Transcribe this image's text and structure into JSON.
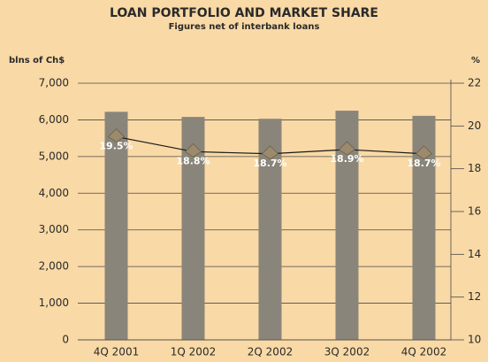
{
  "chart_data": {
    "type": "combo",
    "title": "LOAN PORTFOLIO AND MARKET SHARE",
    "subtitle": "Figures net of interbank loans",
    "y_label": "blns of Ch$",
    "y2_label": "%",
    "categories": [
      "4Q 2001",
      "1Q 2002",
      "2Q 2002",
      "3Q 2002",
      "4Q 2002"
    ],
    "series": [
      {
        "type": "bar",
        "color": "#8a857a",
        "values": [
          6220,
          6080,
          6030,
          6250,
          6110
        ]
      },
      {
        "type": "line",
        "axis": "y2",
        "color": "#1a1a1a",
        "marker_color": "#9c8a6c",
        "values": [
          19.5,
          18.8,
          18.7,
          18.9,
          18.7
        ],
        "value_labels": [
          "19.5%",
          "18.8%",
          "18.7%",
          "18.9%",
          "18.7%"
        ]
      }
    ],
    "ylim": [
      0,
      7000
    ],
    "yticks": [
      0,
      {
        "value": 1000,
        "label": "1,000"
      },
      {
        "value": 2000,
        "label": "2,000"
      },
      {
        "value": 3000,
        "label": "3,000"
      },
      {
        "value": 4000,
        "label": "4,000"
      },
      {
        "value": 5000,
        "label": "5,000"
      },
      {
        "value": 6000,
        "label": "6,000"
      },
      {
        "value": 7000,
        "label": "7,000"
      }
    ],
    "y2lim": [
      10,
      22
    ],
    "y2ticks": [
      10,
      12,
      14,
      16,
      18,
      20,
      22
    ],
    "grid": true
  }
}
